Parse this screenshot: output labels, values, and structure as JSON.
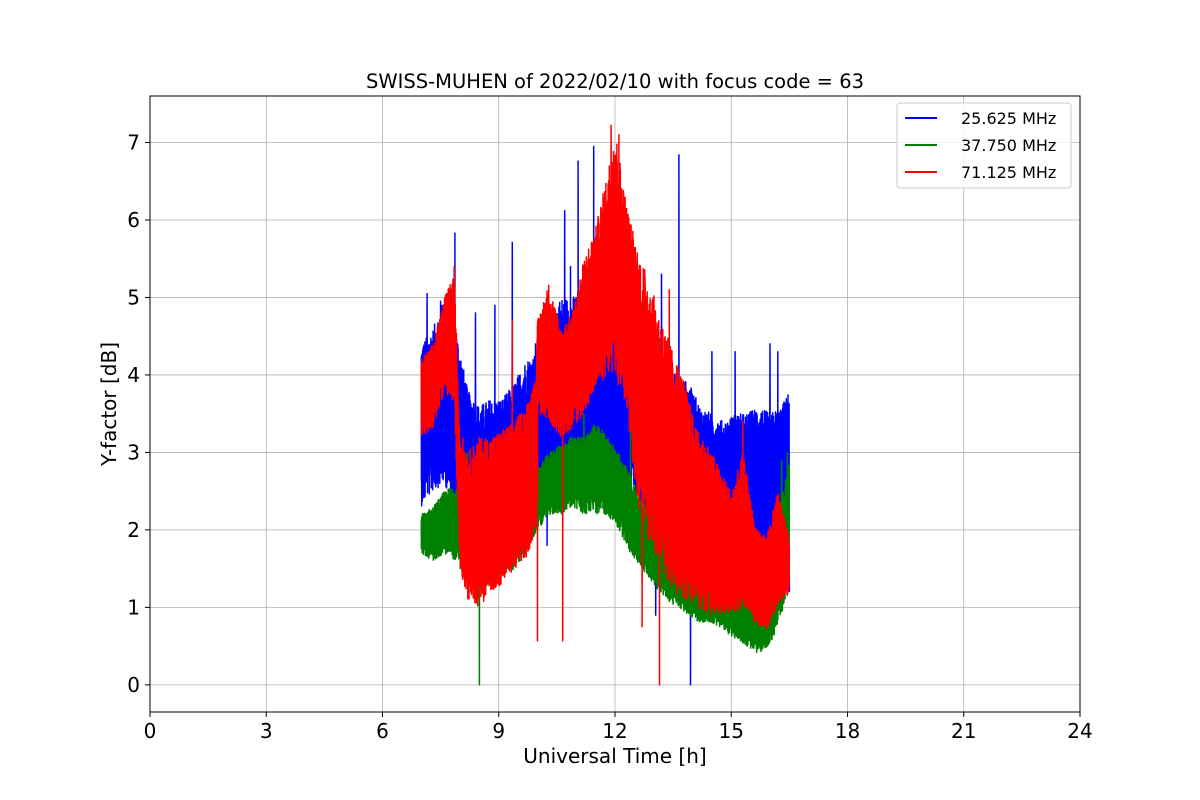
{
  "chart_data": {
    "type": "line",
    "title": "SWISS-MUHEN of 2022/02/10 with focus code = 63",
    "xlabel": "Universal Time [h]",
    "ylabel": "Y-factor [dB]",
    "xlim": [
      0,
      24
    ],
    "ylim": [
      -0.35,
      7.6
    ],
    "xticks": [
      0,
      3,
      6,
      9,
      12,
      15,
      18,
      21,
      24
    ],
    "yticks": [
      0,
      1,
      2,
      3,
      4,
      5,
      6,
      7
    ],
    "grid": true,
    "legend_position": "top-right",
    "series": [
      {
        "name": "25.625 MHz",
        "color": "#0000ff",
        "envelope": [
          [
            7.0,
            2.3,
            4.4
          ],
          [
            7.3,
            2.5,
            4.6
          ],
          [
            7.6,
            2.6,
            5.0
          ],
          [
            7.9,
            2.2,
            4.6
          ],
          [
            8.2,
            1.8,
            3.8
          ],
          [
            8.5,
            1.6,
            3.6
          ],
          [
            8.8,
            1.5,
            3.7
          ],
          [
            9.1,
            1.6,
            3.7
          ],
          [
            9.4,
            1.8,
            3.9
          ],
          [
            9.7,
            2.0,
            4.2
          ],
          [
            10.0,
            2.4,
            4.3
          ],
          [
            10.3,
            2.6,
            4.8
          ],
          [
            10.6,
            2.6,
            5.0
          ],
          [
            10.9,
            2.6,
            5.0
          ],
          [
            11.2,
            2.6,
            5.2
          ],
          [
            11.5,
            2.6,
            5.2
          ],
          [
            11.8,
            2.6,
            5.4
          ],
          [
            12.1,
            2.6,
            5.2
          ],
          [
            12.4,
            2.5,
            5.0
          ],
          [
            12.7,
            2.3,
            4.7
          ],
          [
            13.0,
            2.1,
            4.5
          ],
          [
            13.3,
            1.9,
            4.2
          ],
          [
            13.6,
            1.8,
            4.0
          ],
          [
            13.9,
            1.7,
            3.9
          ],
          [
            14.2,
            1.6,
            3.6
          ],
          [
            14.5,
            1.6,
            3.5
          ],
          [
            14.8,
            1.7,
            3.4
          ],
          [
            15.1,
            1.8,
            3.5
          ],
          [
            15.4,
            1.8,
            3.5
          ],
          [
            15.7,
            1.7,
            3.6
          ],
          [
            16.0,
            1.6,
            3.5
          ],
          [
            16.3,
            1.6,
            3.6
          ],
          [
            16.5,
            1.5,
            3.8
          ]
        ],
        "spikes": [
          [
            7.05,
            4.35
          ],
          [
            7.15,
            5.05
          ],
          [
            7.5,
            4.95
          ],
          [
            7.87,
            5.83
          ],
          [
            8.4,
            4.8
          ],
          [
            8.9,
            4.9
          ],
          [
            9.35,
            5.71
          ],
          [
            9.95,
            4.4
          ],
          [
            10.7,
            6.12
          ],
          [
            10.85,
            5.4
          ],
          [
            11.05,
            6.76
          ],
          [
            11.45,
            6.95
          ],
          [
            12.4,
            5.6
          ],
          [
            13.2,
            5.3
          ],
          [
            13.65,
            6.84
          ],
          [
            14.5,
            4.3
          ],
          [
            15.1,
            4.3
          ],
          [
            16.0,
            4.4
          ],
          [
            16.2,
            4.3
          ],
          [
            10.25,
            1.8
          ],
          [
            10.85,
            1.8
          ],
          [
            13.05,
            0.9
          ],
          [
            13.95,
            0.0
          ],
          [
            15.9,
            1.2
          ],
          [
            16.5,
            1.2
          ]
        ]
      },
      {
        "name": "37.750 MHz",
        "color": "#008000",
        "envelope": [
          [
            7.0,
            1.7,
            2.2
          ],
          [
            7.3,
            1.6,
            2.3
          ],
          [
            7.6,
            1.7,
            2.5
          ],
          [
            7.9,
            1.6,
            2.6
          ],
          [
            8.2,
            1.3,
            2.4
          ],
          [
            8.5,
            1.2,
            2.3
          ],
          [
            8.8,
            1.3,
            2.2
          ],
          [
            9.1,
            1.4,
            2.2
          ],
          [
            9.4,
            1.5,
            2.3
          ],
          [
            9.7,
            1.7,
            2.4
          ],
          [
            10.0,
            2.0,
            2.8
          ],
          [
            10.3,
            2.2,
            3.0
          ],
          [
            10.6,
            2.2,
            3.1
          ],
          [
            10.9,
            2.3,
            3.2
          ],
          [
            11.2,
            2.2,
            3.2
          ],
          [
            11.5,
            2.2,
            3.4
          ],
          [
            11.8,
            2.2,
            3.2
          ],
          [
            12.1,
            2.0,
            3.0
          ],
          [
            12.4,
            1.7,
            2.7
          ],
          [
            12.7,
            1.5,
            2.4
          ],
          [
            13.0,
            1.3,
            2.2
          ],
          [
            13.3,
            1.1,
            2.0
          ],
          [
            13.6,
            1.0,
            1.9
          ],
          [
            13.9,
            0.9,
            1.8
          ],
          [
            14.2,
            0.8,
            1.7
          ],
          [
            14.5,
            0.8,
            1.6
          ],
          [
            14.8,
            0.7,
            1.6
          ],
          [
            15.1,
            0.6,
            1.5
          ],
          [
            15.4,
            0.5,
            1.4
          ],
          [
            15.7,
            0.4,
            1.4
          ],
          [
            16.0,
            0.5,
            1.5
          ],
          [
            16.3,
            0.9,
            2.4
          ],
          [
            16.5,
            1.2,
            2.9
          ]
        ],
        "spikes": [
          [
            8.5,
            0.0
          ],
          [
            8.2,
            3.0
          ],
          [
            11.2,
            3.5
          ],
          [
            12.4,
            3.4
          ],
          [
            16.3,
            2.9
          ],
          [
            16.45,
            3.0
          ]
        ]
      },
      {
        "name": "71.125 MHz",
        "color": "#ff0000",
        "envelope": [
          [
            7.0,
            3.2,
            4.2
          ],
          [
            7.3,
            3.3,
            4.4
          ],
          [
            7.6,
            3.8,
            5.0
          ],
          [
            7.85,
            3.6,
            5.3
          ],
          [
            8.0,
            1.5,
            3.3
          ],
          [
            8.2,
            1.1,
            3.0
          ],
          [
            8.5,
            1.0,
            3.2
          ],
          [
            8.8,
            1.2,
            3.2
          ],
          [
            9.1,
            1.3,
            3.3
          ],
          [
            9.4,
            1.5,
            3.4
          ],
          [
            9.7,
            1.6,
            3.6
          ],
          [
            9.95,
            2.0,
            4.0
          ],
          [
            10.0,
            3.5,
            4.7
          ],
          [
            10.3,
            3.4,
            5.2
          ],
          [
            10.6,
            3.2,
            4.6
          ],
          [
            10.9,
            3.3,
            4.8
          ],
          [
            11.2,
            3.5,
            5.5
          ],
          [
            11.5,
            3.8,
            5.9
          ],
          [
            11.8,
            4.0,
            6.6
          ],
          [
            12.0,
            4.0,
            7.2
          ],
          [
            12.3,
            3.5,
            6.2
          ],
          [
            12.6,
            2.3,
            5.6
          ],
          [
            12.9,
            1.8,
            5.2
          ],
          [
            13.2,
            1.5,
            4.7
          ],
          [
            13.5,
            1.2,
            4.3
          ],
          [
            13.8,
            1.1,
            3.9
          ],
          [
            14.1,
            1.0,
            3.3
          ],
          [
            14.4,
            0.9,
            3.1
          ],
          [
            14.7,
            0.9,
            2.8
          ],
          [
            15.0,
            0.9,
            2.5
          ],
          [
            15.3,
            1.0,
            3.0
          ],
          [
            15.6,
            0.8,
            2.1
          ],
          [
            15.9,
            0.7,
            1.9
          ],
          [
            16.2,
            1.0,
            2.5
          ],
          [
            16.5,
            1.2,
            1.9
          ]
        ],
        "spikes": [
          [
            7.85,
            5.4
          ],
          [
            9.35,
            4.7
          ],
          [
            10.0,
            0.57
          ],
          [
            10.65,
            0.57
          ],
          [
            11.9,
            7.22
          ],
          [
            12.1,
            7.1
          ],
          [
            12.7,
            0.75
          ],
          [
            13.15,
            0.0
          ],
          [
            13.4,
            5.1
          ],
          [
            15.3,
            3.4
          ]
        ]
      }
    ]
  }
}
